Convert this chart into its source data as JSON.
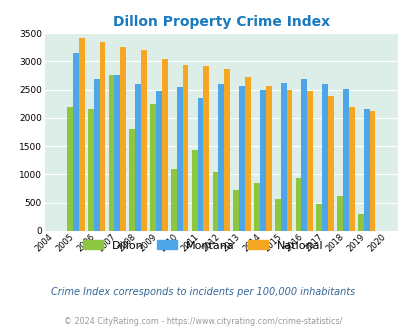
{
  "title": "Dillon Property Crime Index",
  "years": [
    2004,
    2005,
    2006,
    2007,
    2008,
    2009,
    2010,
    2011,
    2012,
    2013,
    2014,
    2015,
    2016,
    2017,
    2018,
    2019,
    2020
  ],
  "dillon": [
    null,
    2200,
    2150,
    2750,
    1800,
    2250,
    1100,
    1430,
    1040,
    720,
    840,
    560,
    930,
    470,
    610,
    300,
    null
  ],
  "montana": [
    null,
    3150,
    2680,
    2760,
    2600,
    2470,
    2550,
    2350,
    2600,
    2570,
    2490,
    2620,
    2680,
    2600,
    2510,
    2150,
    null
  ],
  "national": [
    null,
    3420,
    3340,
    3260,
    3200,
    3040,
    2940,
    2920,
    2870,
    2720,
    2570,
    2490,
    2480,
    2380,
    2190,
    2120,
    null
  ],
  "dillon_color": "#8dc63f",
  "montana_color": "#4da6e8",
  "national_color": "#f5a623",
  "bg_color": "#ddeee8",
  "ylim": [
    0,
    3500
  ],
  "ylabel_ticks": [
    0,
    500,
    1000,
    1500,
    2000,
    2500,
    3000,
    3500
  ],
  "subtitle": "Crime Index corresponds to incidents per 100,000 inhabitants",
  "footer": "© 2024 CityRating.com - https://www.cityrating.com/crime-statistics/",
  "title_color": "#1a7abf",
  "subtitle_color": "#336699",
  "footer_color": "#999999"
}
